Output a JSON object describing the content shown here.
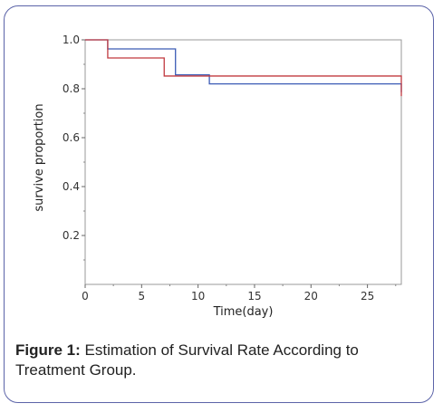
{
  "chart_data": {
    "type": "line",
    "subtype": "step",
    "xlabel": "Time(day)",
    "ylabel": "survive proportion",
    "xlim": [
      0,
      28
    ],
    "ylim": [
      0,
      1.0
    ],
    "x_ticks": [
      0,
      5,
      10,
      15,
      20,
      25
    ],
    "y_ticks": [
      0.2,
      0.4,
      0.6,
      0.8,
      1.0
    ],
    "x_tick_labels": [
      "0",
      "5",
      "10",
      "15",
      "20",
      "25"
    ],
    "y_tick_labels": [
      "0.2",
      "0.4",
      "0.6",
      "0.8",
      "1.0"
    ],
    "grid": false,
    "legend": "none",
    "series": [
      {
        "color": "#3b5bb5",
        "x": [
          0,
          2,
          8,
          11,
          26,
          28
        ],
        "y": [
          1.0,
          0.963,
          0.857,
          0.82,
          0.82,
          0.786
        ]
      },
      {
        "color": "#c0393f",
        "x": [
          0,
          2,
          7,
          14,
          28
        ],
        "y": [
          1.0,
          0.926,
          0.852,
          0.852,
          0.77
        ]
      }
    ]
  },
  "caption": {
    "label": "Figure 1:",
    "text": " Estimation of Survival Rate According to Treatment Group."
  }
}
